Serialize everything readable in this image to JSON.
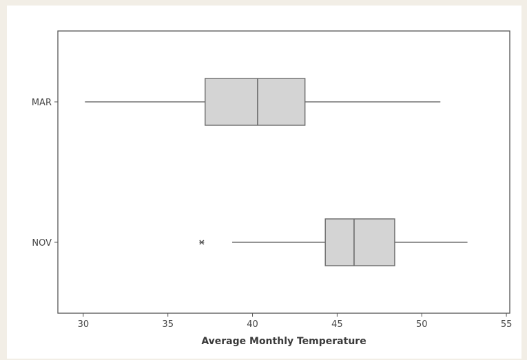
{
  "chart_data": {
    "type": "boxplot",
    "orientation": "horizontal",
    "title": "",
    "xlabel": "Average Monthly Temperature",
    "ylabel": "",
    "xlim": [
      28.5,
      55.2
    ],
    "x_ticks": [
      30,
      35,
      40,
      45,
      50,
      55
    ],
    "categories": [
      "MAR",
      "NOV"
    ],
    "series": [
      {
        "category": "MAR",
        "whisker_low": 30.1,
        "q1": 37.2,
        "median": 40.3,
        "q3": 43.1,
        "whisker_high": 51.1,
        "outliers": []
      },
      {
        "category": "NOV",
        "whisker_low": 38.8,
        "q1": 44.3,
        "median": 46.0,
        "q3": 48.4,
        "whisker_high": 52.7,
        "outliers": [
          37.0
        ]
      }
    ],
    "grid": false,
    "colors": {
      "box_fill": "#d4d4d4",
      "box_stroke": "#6b6b6b",
      "whisker": "#707070",
      "outlier": "#555555",
      "frame": "#555555",
      "plot_bg": "#ffffff",
      "figure_bg": "#f2eee6"
    }
  }
}
